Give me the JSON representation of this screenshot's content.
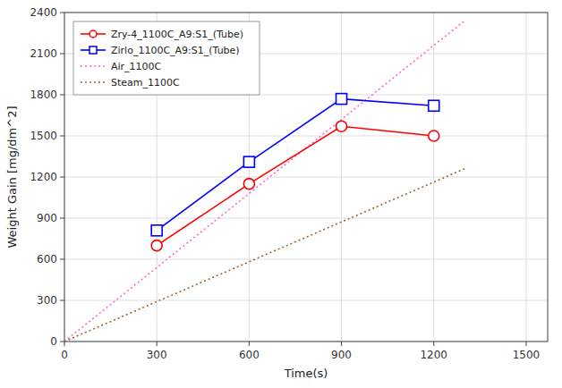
{
  "chart_data": {
    "type": "line",
    "x_label": "Time(s)",
    "y_label": "Weight Gain [mg/dm^2]",
    "xlim": [
      0,
      1570
    ],
    "ylim": [
      0,
      2400
    ],
    "xticks": [
      0,
      300,
      600,
      900,
      1200,
      1500
    ],
    "yticks": [
      0,
      300,
      600,
      900,
      1200,
      1500,
      1800,
      2100,
      2400
    ],
    "grid": true,
    "legend": "upper-left",
    "series": [
      {
        "name": "Zry-4_1100C_A9:S1_(Tube)",
        "color": "#FF0000",
        "marker": "circle",
        "line_style": "solid",
        "x": [
          300,
          600,
          900,
          1200
        ],
        "values": [
          700,
          1150,
          1570,
          1500
        ]
      },
      {
        "name": "Zirlo_1100C_A9:S1_(Tube)",
        "color": "#0000FF",
        "marker": "square",
        "line_style": "solid",
        "x": [
          300,
          600,
          900,
          1200
        ],
        "values": [
          810,
          1310,
          1770,
          1720
        ]
      },
      {
        "name": "Air_1100C",
        "color": "#FF66CC",
        "line_style": "dotted",
        "x": [
          0,
          1300
        ],
        "values": [
          0,
          2340
        ]
      },
      {
        "name": "Steam_1100C",
        "color": "#996633",
        "line_style": "dotted",
        "x": [
          0,
          1300
        ],
        "values": [
          0,
          1260
        ]
      }
    ]
  }
}
